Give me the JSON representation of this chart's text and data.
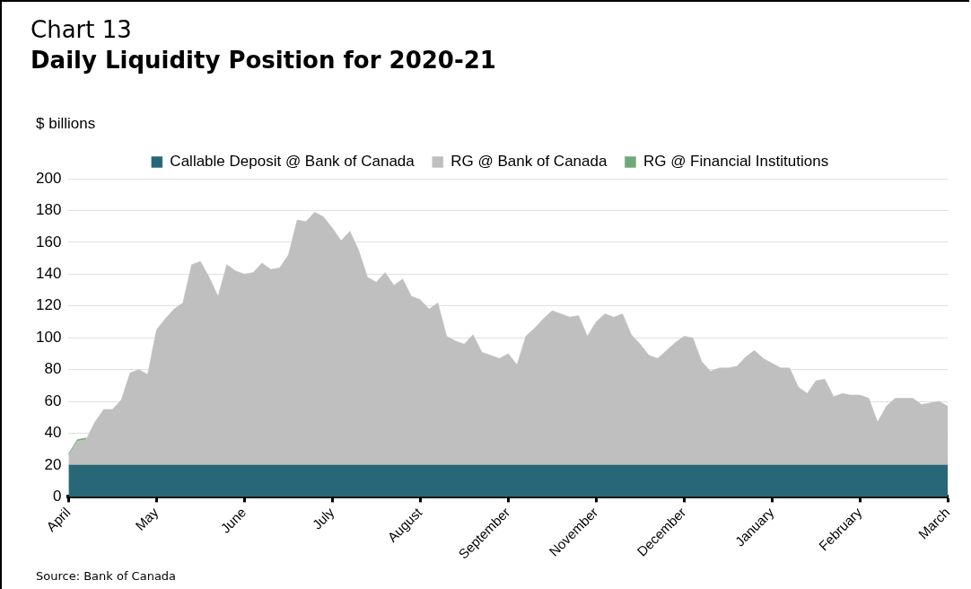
{
  "chart_data": {
    "type": "area",
    "subtitle": "Chart 13",
    "title": "Daily Liquidity Position for 2020-21",
    "ylabel": "$ billions",
    "annotations": [
      "Source: Bank of Canada"
    ],
    "stacked": true,
    "legend": "top",
    "grid": "y",
    "marker": "none",
    "categories": [
      "April",
      null,
      null,
      null,
      null,
      null,
      null,
      null,
      null,
      null,
      "May",
      null,
      null,
      null,
      null,
      null,
      null,
      null,
      null,
      null,
      "June",
      null,
      null,
      null,
      null,
      null,
      null,
      null,
      null,
      null,
      "July",
      null,
      null,
      null,
      null,
      null,
      null,
      null,
      null,
      null,
      "August",
      null,
      null,
      null,
      null,
      null,
      null,
      null,
      null,
      null,
      "September",
      null,
      null,
      null,
      null,
      null,
      null,
      null,
      null,
      null,
      "November",
      null,
      null,
      null,
      null,
      null,
      null,
      null,
      null,
      null,
      "December",
      null,
      null,
      null,
      null,
      null,
      null,
      null,
      null,
      null,
      "January",
      null,
      null,
      null,
      null,
      null,
      null,
      null,
      null,
      null,
      "February",
      null,
      null,
      null,
      null,
      null,
      null,
      null,
      null,
      null,
      "March"
    ],
    "ylim": [
      0,
      200
    ],
    "yticks": [
      0,
      20,
      40,
      60,
      80,
      100,
      120,
      140,
      160,
      180,
      200
    ],
    "series": [
      {
        "name": "Callable Deposit @ Bank of Canada",
        "color": "#286778",
        "values": [
          20,
          20,
          20,
          20,
          20,
          20,
          20,
          20,
          20,
          20,
          20,
          20,
          20,
          20,
          20,
          20,
          20,
          20,
          20,
          20,
          20,
          20,
          20,
          20,
          20,
          20,
          20,
          20,
          20,
          20,
          20,
          20,
          20,
          20,
          20,
          20,
          20,
          20,
          20,
          20,
          20,
          20,
          20,
          20,
          20,
          20,
          20,
          20,
          20,
          20,
          20,
          20,
          20,
          20,
          20,
          20,
          20,
          20,
          20,
          20,
          20,
          20,
          20,
          20,
          20,
          20,
          20,
          20,
          20,
          20,
          20,
          20,
          20,
          20,
          20,
          20,
          20,
          20,
          20,
          20,
          20,
          20,
          20,
          20,
          20,
          20,
          20,
          20,
          20,
          20,
          20,
          20,
          20,
          20,
          20,
          20,
          20,
          20,
          20,
          20,
          20
        ]
      },
      {
        "name": "RG @ Bank of Canada",
        "color": "#bfbfbf",
        "values": [
          6,
          15,
          16,
          27,
          35,
          35,
          41,
          58,
          60,
          57,
          85,
          92,
          98,
          102,
          126,
          128,
          118,
          106,
          126,
          122,
          120,
          121,
          127,
          123,
          124,
          132,
          154,
          153,
          159,
          156,
          149,
          141,
          147,
          135,
          118,
          115,
          121,
          113,
          117,
          106,
          104,
          98,
          102,
          81,
          78,
          76,
          82,
          71,
          69,
          67,
          70,
          63,
          81,
          86,
          92,
          97,
          95,
          93,
          94,
          81,
          90,
          95,
          93,
          95,
          82,
          76,
          69,
          67,
          72,
          77,
          81,
          80,
          65,
          59,
          61,
          61,
          62,
          68,
          72,
          67,
          64,
          61,
          61,
          49,
          45,
          53,
          54,
          43,
          45,
          44,
          44,
          42,
          27,
          37,
          42,
          42,
          42,
          38,
          39,
          40,
          37
        ]
      },
      {
        "name": "RG @ Financial Institutions",
        "color": "#6fa97b",
        "values": [
          1,
          1,
          1,
          null,
          null,
          null,
          null,
          null,
          null,
          null,
          null,
          null,
          null,
          null,
          null,
          null,
          null,
          null,
          null,
          null,
          null,
          null,
          null,
          null,
          null,
          null,
          null,
          null,
          null,
          null,
          null,
          null,
          null,
          null,
          null,
          null,
          null,
          null,
          null,
          null,
          null,
          null,
          null,
          null,
          null,
          null,
          null,
          null,
          null,
          null,
          null,
          null,
          null,
          null,
          null,
          null,
          null,
          null,
          null,
          null,
          null,
          null,
          null,
          null,
          null,
          null,
          null,
          null,
          null,
          null,
          null,
          null,
          null,
          null,
          null,
          null,
          null,
          null,
          null,
          null,
          null,
          null,
          null,
          null,
          null,
          null,
          null,
          null,
          null,
          null,
          null,
          null,
          null,
          null,
          null,
          null,
          null,
          null,
          null,
          null,
          null
        ]
      }
    ]
  }
}
